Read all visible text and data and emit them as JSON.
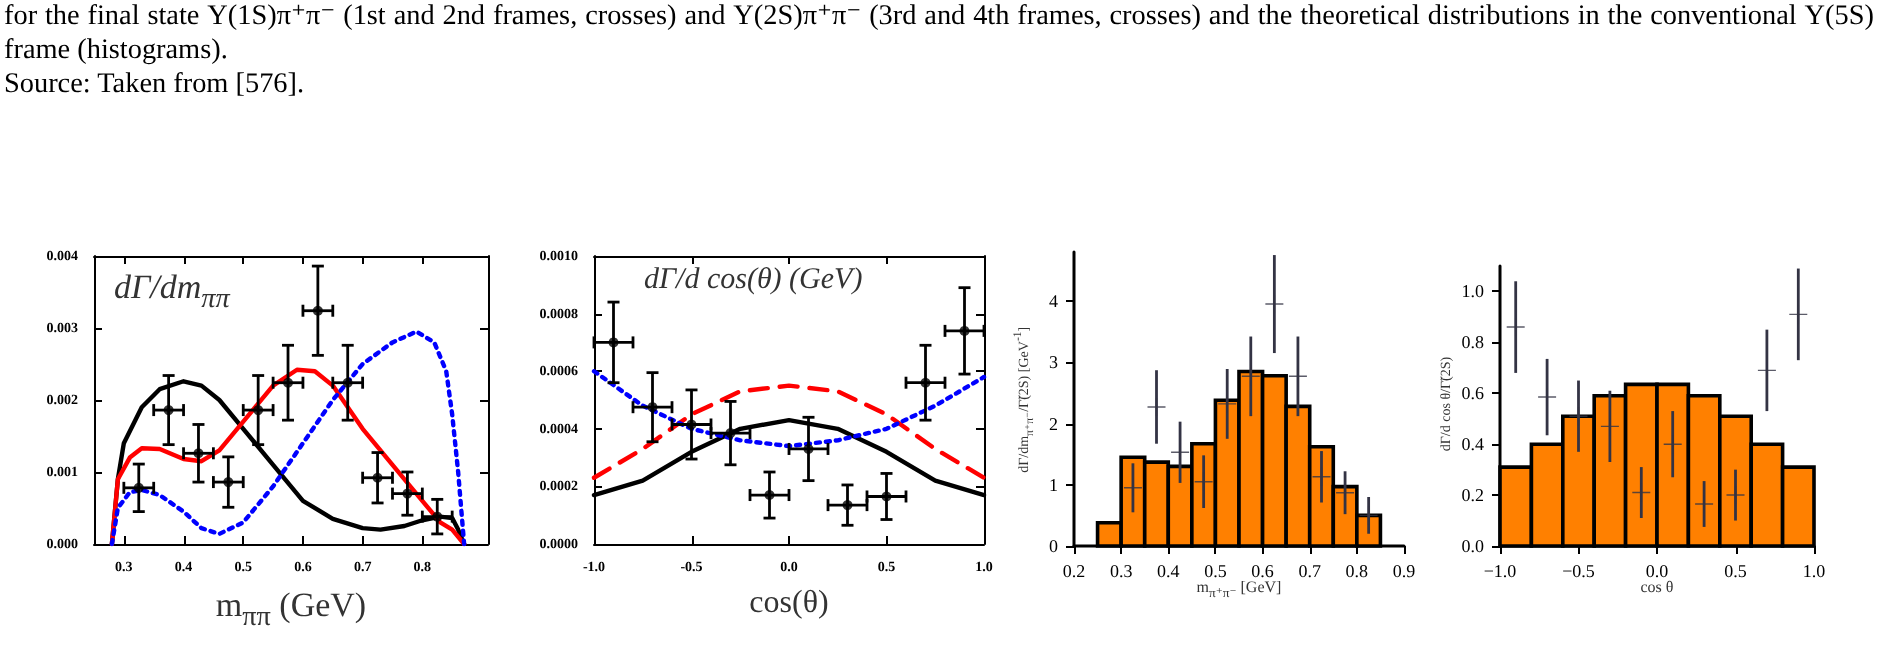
{
  "chart_data": [
    {
      "type": "line",
      "title": "dΓ/dm$_{ππ}$",
      "xlabel": "m$_{ππ}$ (GeV)",
      "annotations": [
        "for the final state Υ(1S)π⁺π⁻ (1st and 2nd frames, crosses) and Υ(2S)π⁺π⁻ (3rd and 4th frames, crosses) and the theoretical distributions in the conventional Υ(5S) frame (histograms).",
        "Source: Taken from [576]."
      ],
      "xlim": [
        0.25,
        0.91
      ],
      "xticks": [
        0.3,
        0.4,
        0.5,
        0.6,
        0.7,
        0.8
      ],
      "ylim": [
        0,
        0.004
      ],
      "yticks": [
        {
          "value": 0,
          "label": "0.000"
        },
        {
          "value": 0.001,
          "label": "0.001"
        },
        {
          "value": 0.002,
          "label": "0.002"
        },
        {
          "value": 0.003,
          "label": "0.003"
        },
        {
          "value": 0.004,
          "label": "0.004"
        }
      ],
      "series": [
        {
          "color": "#000000",
          "line_style": "solid",
          "x": [
            0.28,
            0.29,
            0.3,
            0.33,
            0.36,
            0.4,
            0.43,
            0.46,
            0.5,
            0.55,
            0.6,
            0.65,
            0.7,
            0.73,
            0.77,
            0.8,
            0.83,
            0.85,
            0.86,
            0.87
          ],
          "values": [
            0,
            0.0009,
            0.0014,
            0.0019,
            0.00215,
            0.00226,
            0.0022,
            0.002,
            0.0016,
            0.0011,
            0.0006,
            0.00035,
            0.00022,
            0.0002,
            0.00025,
            0.00033,
            0.00038,
            0.00036,
            0.0002,
            0
          ]
        },
        {
          "color": "#ff0000",
          "line_style": "solid",
          "x": [
            0.28,
            0.29,
            0.31,
            0.33,
            0.36,
            0.4,
            0.43,
            0.46,
            0.5,
            0.55,
            0.59,
            0.62,
            0.65,
            0.7,
            0.75,
            0.8,
            0.83,
            0.85,
            0.87
          ],
          "values": [
            0,
            0.0009,
            0.0012,
            0.00133,
            0.00132,
            0.00118,
            0.00115,
            0.0013,
            0.0017,
            0.0022,
            0.00242,
            0.0024,
            0.0022,
            0.0016,
            0.0011,
            0.0006,
            0.0003,
            0.0002,
            0
          ]
        },
        {
          "color": "#0000ff",
          "line_style": "dotted",
          "x": [
            0.28,
            0.29,
            0.31,
            0.33,
            0.36,
            0.4,
            0.43,
            0.46,
            0.5,
            0.55,
            0.6,
            0.65,
            0.7,
            0.75,
            0.79,
            0.82,
            0.84,
            0.85,
            0.86,
            0.87
          ],
          "values": [
            0,
            0.0005,
            0.00072,
            0.00075,
            0.00068,
            0.00045,
            0.00022,
            0.00014,
            0.0003,
            0.0008,
            0.0014,
            0.002,
            0.0025,
            0.0028,
            0.00295,
            0.0028,
            0.0024,
            0.0018,
            0.001,
            0
          ]
        },
        {
          "type": "scatter",
          "color": "#000000",
          "marker": "circle",
          "x": [
            0.325,
            0.375,
            0.425,
            0.475,
            0.525,
            0.575,
            0.625,
            0.675,
            0.725,
            0.775,
            0.825
          ],
          "values": [
            0.00078,
            0.00186,
            0.00126,
            0.00086,
            0.00186,
            0.00224,
            0.00324,
            0.00224,
            0.00092,
            0.0007,
            0.00038
          ],
          "errors": [
            0.00033,
            0.00048,
            0.0004,
            0.00035,
            0.00048,
            0.00052,
            0.00062,
            0.00052,
            0.00035,
            0.0003,
            0.00024
          ],
          "xerrors": [
            0.025,
            0.025,
            0.025,
            0.025,
            0.025,
            0.025,
            0.025,
            0.025,
            0.025,
            0.025,
            0.025
          ]
        }
      ]
    },
    {
      "type": "line",
      "title": "dΓ/d cos(θ) (GeV)",
      "xlabel": "cos(θ)",
      "xlim": [
        -1,
        1
      ],
      "xticks": [
        {
          "value": -1,
          "label": "-1.0"
        },
        {
          "value": -0.5,
          "label": "-0.5"
        },
        {
          "value": 0,
          "label": "0.0"
        },
        {
          "value": 0.5,
          "label": "0.5"
        },
        {
          "value": 1,
          "label": "1.0"
        }
      ],
      "ylim": [
        0,
        0.001
      ],
      "yticks": [
        {
          "value": 0,
          "label": "0.0000"
        },
        {
          "value": 0.0002,
          "label": "0.0002"
        },
        {
          "value": 0.0004,
          "label": "0.0004"
        },
        {
          "value": 0.0006,
          "label": "0.0006"
        },
        {
          "value": 0.0008,
          "label": "0.0008"
        },
        {
          "value": 0.001,
          "label": "0.0010"
        }
      ],
      "series": [
        {
          "color": "#000000",
          "line_style": "solid",
          "x": [
            -1,
            -0.75,
            -0.5,
            -0.25,
            0,
            0.25,
            0.5,
            0.75,
            1
          ],
          "values": [
            0.00017,
            0.00022,
            0.00032,
            0.0004,
            0.00043,
            0.0004,
            0.00032,
            0.00022,
            0.00017
          ]
        },
        {
          "color": "#ff0000",
          "line_style": "dashed",
          "x": [
            -1,
            -0.75,
            -0.5,
            -0.25,
            0,
            0.25,
            0.5,
            0.75,
            1
          ],
          "values": [
            0.00023,
            0.00033,
            0.00045,
            0.00053,
            0.00055,
            0.00053,
            0.00045,
            0.00033,
            0.00023
          ]
        },
        {
          "color": "#0000ff",
          "line_style": "dotted",
          "x": [
            -1,
            -0.75,
            -0.5,
            -0.25,
            0,
            0.25,
            0.5,
            0.75,
            1
          ],
          "values": [
            0.0006,
            0.00048,
            0.0004,
            0.00036,
            0.00034,
            0.00036,
            0.0004,
            0.00048,
            0.00058
          ]
        },
        {
          "type": "scatter",
          "color": "#000000",
          "marker": "circle",
          "x": [
            -0.9,
            -0.7,
            -0.5,
            -0.3,
            -0.1,
            0.1,
            0.3,
            0.5,
            0.7,
            0.9
          ],
          "values": [
            0.0007,
            0.000475,
            0.000415,
            0.000385,
            0.00017,
            0.00033,
            0.000135,
            0.000165,
            0.00056,
            0.00074
          ],
          "errors": [
            0.00014,
            0.00012,
            0.00012,
            0.00011,
            8e-05,
            0.00011,
            7e-05,
            8e-05,
            0.00013,
            0.00015
          ],
          "xerrors": [
            0.1,
            0.1,
            0.1,
            0.1,
            0.1,
            0.1,
            0.1,
            0.1,
            0.1,
            0.1
          ]
        }
      ]
    },
    {
      "type": "histogram",
      "xlabel": "m$_{π⁺π⁻}$ [GeV]",
      "ylabel": "dΓ/dm$_{π⁺π⁻}$/Γ̃(2S) [GeV$^{-1}$]",
      "xlim": [
        0.2,
        0.9
      ],
      "xticks": [
        0.2,
        0.3,
        0.4,
        0.5,
        0.6,
        0.7,
        0.8,
        0.9
      ],
      "ylim": [
        0,
        4.8
      ],
      "yticks": [
        0,
        1,
        2,
        3,
        4
      ],
      "series": [
        {
          "color": "#ff8000",
          "bins": [
            0.25,
            0.3,
            0.35,
            0.4,
            0.45,
            0.5,
            0.55,
            0.6,
            0.65,
            0.7,
            0.75,
            0.8,
            0.85
          ],
          "values": [
            0.38,
            1.45,
            1.37,
            1.3,
            1.67,
            2.38,
            2.85,
            2.78,
            2.28,
            1.62,
            0.97,
            0.5
          ]
        },
        {
          "type": "scatter",
          "color": "#333344",
          "marker": "cross",
          "x": [
            0.325,
            0.375,
            0.425,
            0.475,
            0.525,
            0.575,
            0.625,
            0.675,
            0.725,
            0.775,
            0.825
          ],
          "values": [
            0.95,
            2.27,
            1.53,
            1.05,
            2.32,
            2.77,
            3.95,
            2.77,
            1.13,
            0.87,
            0.5
          ],
          "errors": [
            0.4,
            0.6,
            0.5,
            0.43,
            0.57,
            0.65,
            0.8,
            0.65,
            0.42,
            0.35,
            0.3
          ]
        }
      ]
    },
    {
      "type": "histogram",
      "xlabel": "cos θ",
      "ylabel": "dΓ/d cos θ/Γ̃(2S)",
      "xlim": [
        -1,
        1
      ],
      "xticks": [
        {
          "value": -1,
          "label": "−1.0"
        },
        {
          "value": -0.5,
          "label": "−0.5"
        },
        {
          "value": 0,
          "label": "0.0"
        },
        {
          "value": 0.5,
          "label": "0.5"
        },
        {
          "value": 1,
          "label": "1.0"
        }
      ],
      "ylim": [
        0,
        1.1
      ],
      "yticks": [
        {
          "value": 0,
          "label": "0.0"
        },
        {
          "value": 0.2,
          "label": "0.2"
        },
        {
          "value": 0.4,
          "label": "0.4"
        },
        {
          "value": 0.6,
          "label": "0.6"
        },
        {
          "value": 0.8,
          "label": "0.8"
        },
        {
          "value": 1,
          "label": "1.0"
        }
      ],
      "series": [
        {
          "color": "#ff8000",
          "bins": [
            -1,
            -0.8,
            -0.6,
            -0.4,
            -0.2,
            0,
            0.2,
            0.4,
            0.6,
            0.8,
            1
          ],
          "values": [
            0.31,
            0.4,
            0.51,
            0.59,
            0.635,
            0.635,
            0.59,
            0.51,
            0.4,
            0.31
          ]
        },
        {
          "type": "scatter",
          "color": "#333344",
          "marker": "cross",
          "x": [
            -0.9,
            -0.7,
            -0.5,
            -0.3,
            -0.1,
            0.1,
            0.3,
            0.5,
            0.7,
            0.9
          ],
          "values": [
            0.86,
            0.585,
            0.51,
            0.47,
            0.21,
            0.4,
            0.165,
            0.2,
            0.69,
            0.91
          ],
          "errors": [
            0.18,
            0.15,
            0.14,
            0.14,
            0.1,
            0.13,
            0.09,
            0.1,
            0.16,
            0.18
          ]
        }
      ]
    }
  ]
}
